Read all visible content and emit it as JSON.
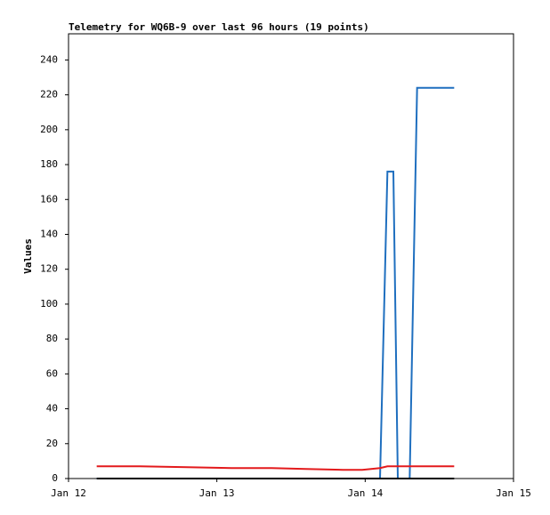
{
  "chart_data": {
    "type": "line",
    "title": "Telemetry for WQ6B-9 over last 96 hours (19 points)",
    "y_label": "Values",
    "x": [
      12.19,
      12.48,
      12.8,
      13.1,
      13.37,
      13.6,
      13.85,
      13.98,
      14.1,
      14.15,
      14.19,
      14.22,
      14.27,
      14.3,
      14.35,
      14.42,
      14.5,
      14.55,
      14.6
    ],
    "series": [
      {
        "color": "#1f6fbf",
        "values": [
          0,
          0,
          0,
          0,
          0,
          0,
          0,
          0,
          0,
          176,
          176,
          0,
          0,
          0,
          224,
          224,
          224,
          224,
          224
        ]
      },
      {
        "color": "#e31a1c",
        "values": [
          7,
          7,
          6.5,
          6,
          6,
          5.5,
          5,
          5,
          6,
          7,
          7,
          7,
          7,
          7,
          7,
          7,
          7,
          7,
          7
        ]
      },
      {
        "color": "#000000",
        "values": [
          0,
          0,
          0,
          0,
          0,
          0,
          0,
          0,
          0,
          0,
          0,
          0,
          0,
          0,
          0,
          0,
          0,
          0,
          0
        ]
      }
    ],
    "xlim": [
      12,
      15
    ],
    "xticks": [
      {
        "value": 12,
        "label": "Jan 12"
      },
      {
        "value": 13,
        "label": "Jan 13"
      },
      {
        "value": 14,
        "label": "Jan 14"
      },
      {
        "value": 15,
        "label": "Jan 15"
      }
    ],
    "ylim": [
      0,
      255
    ],
    "yticks": [
      0,
      20,
      40,
      60,
      80,
      100,
      120,
      140,
      160,
      180,
      200,
      220,
      240
    ]
  }
}
